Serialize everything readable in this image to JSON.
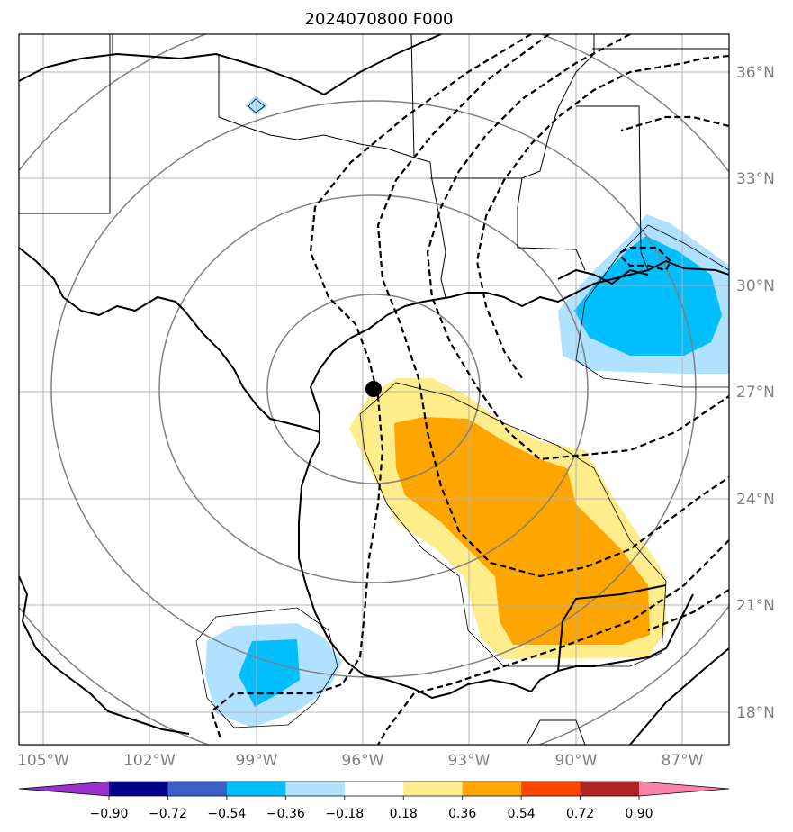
{
  "chart_data": {
    "type": "map-contour",
    "title": "2024070800 F000",
    "x_ticks": [
      "105°W",
      "102°W",
      "99°W",
      "96°W",
      "93°W",
      "90°W",
      "87°W"
    ],
    "y_ticks": [
      "36°N",
      "33°N",
      "30°N",
      "27°N",
      "24°N",
      "21°N",
      "18°N"
    ],
    "lon_range": [
      -105.7,
      -85.6
    ],
    "lat_range": [
      17,
      37
    ],
    "grid": true,
    "center_marker": {
      "lon": -95.8,
      "lat": 27.1
    },
    "colorbar": {
      "orientation": "horizontal",
      "extend": "both",
      "levels": [
        "-0.90",
        "-0.72",
        "-0.54",
        "-0.36",
        "-0.18",
        "0.18",
        "0.36",
        "0.54",
        "0.72",
        "0.90"
      ],
      "colors": [
        "#9932cc",
        "#00008b",
        "#3a5fcd",
        "#00bfff",
        "#b0e2ff",
        "#ffffff",
        "#ffec8b",
        "#ffa500",
        "#ff4500",
        "#b22222",
        "#ff82ab"
      ]
    }
  }
}
